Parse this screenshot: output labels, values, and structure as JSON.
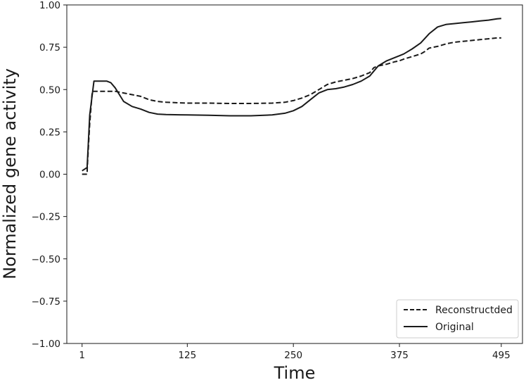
{
  "chart_data": {
    "type": "line",
    "title": "",
    "xlabel": "Time",
    "ylabel": "Normalized gene activity",
    "xlim": [
      -17,
      520
    ],
    "ylim": [
      -1.0,
      1.0
    ],
    "x_ticks": [
      1,
      125,
      250,
      375,
      495
    ],
    "y_ticks": [
      -1.0,
      -0.75,
      -0.5,
      -0.25,
      0.0,
      0.25,
      0.5,
      0.75,
      1.0
    ],
    "x_tick_labels": [
      "1",
      "125",
      "250",
      "375",
      "495"
    ],
    "y_tick_labels": [
      "−1.00",
      "−0.75",
      "−0.50",
      "−0.25",
      "0.00",
      "0.25",
      "0.50",
      "0.75",
      "1.00"
    ],
    "grid": false,
    "legend_position": "lower-right",
    "series": [
      {
        "name": "Reconstructded",
        "style": "dashed",
        "color": "#1a1a1a",
        "x": [
          1,
          7,
          7,
          10,
          13,
          20,
          30,
          40,
          50,
          60,
          70,
          80,
          90,
          100,
          125,
          150,
          175,
          200,
          225,
          240,
          250,
          260,
          270,
          280,
          290,
          300,
          310,
          320,
          330,
          340,
          345,
          350,
          360,
          370,
          375,
          380,
          390,
          400,
          405,
          410,
          415,
          420,
          430,
          440,
          450,
          460,
          470,
          480,
          490,
          495
        ],
        "y": [
          0.0,
          0.0,
          0.03,
          0.3,
          0.49,
          0.49,
          0.49,
          0.49,
          0.48,
          0.47,
          0.46,
          0.44,
          0.43,
          0.425,
          0.42,
          0.42,
          0.418,
          0.418,
          0.42,
          0.425,
          0.435,
          0.45,
          0.47,
          0.5,
          0.53,
          0.545,
          0.555,
          0.565,
          0.58,
          0.6,
          0.63,
          0.64,
          0.65,
          0.665,
          0.67,
          0.68,
          0.695,
          0.71,
          0.725,
          0.745,
          0.75,
          0.755,
          0.77,
          0.78,
          0.785,
          0.79,
          0.795,
          0.8,
          0.805,
          0.805
        ]
      },
      {
        "name": "Original",
        "style": "solid",
        "color": "#1a1a1a",
        "x": [
          1,
          7,
          7,
          10,
          15,
          20,
          25,
          30,
          35,
          40,
          45,
          50,
          60,
          70,
          80,
          90,
          100,
          125,
          150,
          175,
          200,
          225,
          240,
          250,
          260,
          270,
          280,
          290,
          300,
          310,
          320,
          330,
          340,
          345,
          350,
          360,
          370,
          375,
          380,
          390,
          400,
          410,
          420,
          430,
          440,
          450,
          460,
          470,
          480,
          490,
          495
        ],
        "y": [
          0.02,
          0.04,
          0.05,
          0.35,
          0.55,
          0.55,
          0.55,
          0.55,
          0.54,
          0.51,
          0.47,
          0.43,
          0.4,
          0.385,
          0.365,
          0.355,
          0.352,
          0.35,
          0.348,
          0.345,
          0.345,
          0.35,
          0.36,
          0.375,
          0.4,
          0.44,
          0.48,
          0.5,
          0.505,
          0.515,
          0.53,
          0.55,
          0.58,
          0.61,
          0.64,
          0.67,
          0.69,
          0.7,
          0.71,
          0.74,
          0.775,
          0.83,
          0.87,
          0.885,
          0.89,
          0.895,
          0.9,
          0.905,
          0.91,
          0.918,
          0.92
        ]
      }
    ]
  }
}
